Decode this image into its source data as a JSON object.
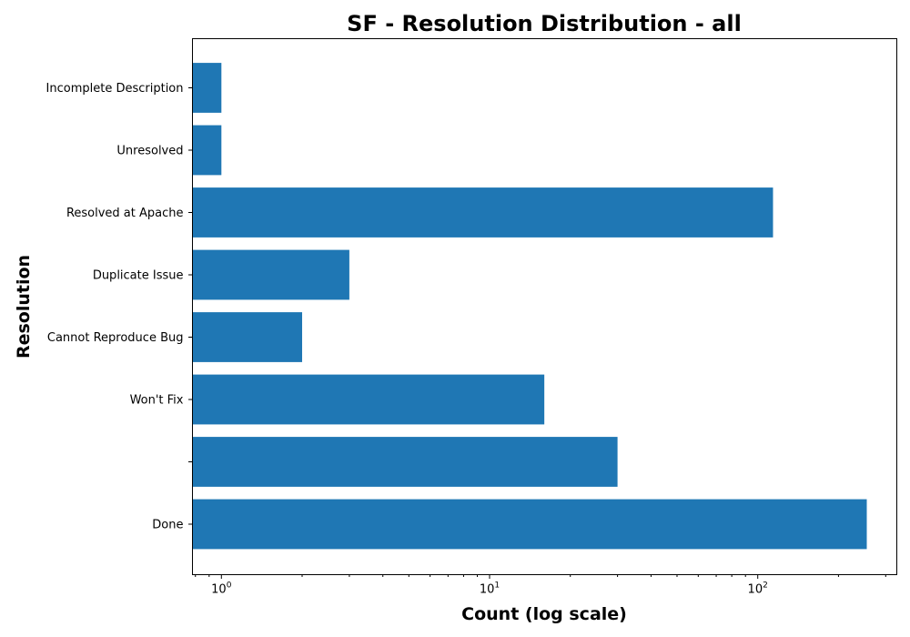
{
  "chart_data": {
    "type": "bar",
    "orientation": "horizontal",
    "title": "SF - Resolution Distribution - all",
    "xlabel": "Count (log scale)",
    "ylabel": "Resolution",
    "x_scale": "log",
    "xlim": [
      0.78,
      330
    ],
    "categories": [
      "Done",
      "",
      "Won't Fix",
      "Cannot Reproduce Bug",
      "Duplicate Issue",
      "Resolved at Apache",
      "Unresolved",
      "Incomplete Description"
    ],
    "values": [
      255,
      30,
      16,
      2,
      3,
      114,
      1,
      1
    ],
    "x_ticks": [
      {
        "value": 1,
        "base": "10",
        "exp": "0"
      },
      {
        "value": 10,
        "base": "10",
        "exp": "1"
      },
      {
        "value": 100,
        "base": "10",
        "exp": "2"
      }
    ],
    "bar_color": "#1f77b4",
    "grid": false,
    "legend": "none"
  }
}
